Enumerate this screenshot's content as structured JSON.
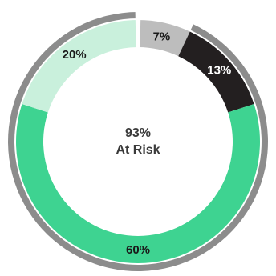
{
  "chart_data": {
    "type": "pie",
    "slices": [
      {
        "label": "7%",
        "value": 7,
        "color": "#bdbdbd",
        "label_color": "#1a1a1a"
      },
      {
        "label": "13%",
        "value": 13,
        "color": "#231f20",
        "label_color": "#ffffff"
      },
      {
        "label": "60%",
        "value": 60,
        "color": "#3ed391",
        "label_color": "#1a1a1a"
      },
      {
        "label": "20%",
        "value": 20,
        "color": "#c9f0dc",
        "label_color": "#1a1a1a"
      }
    ],
    "center_value": "93%",
    "center_text": "At Risk",
    "outer_ring_color": "#8c8c8c",
    "outer_ring_value": 93
  }
}
